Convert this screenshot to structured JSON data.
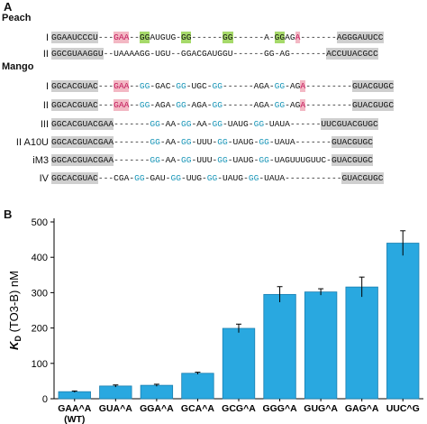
{
  "panel_a": {
    "label": "A",
    "groups": [
      {
        "name": "Peach",
        "rows": [
          {
            "name": "I",
            "segments": [
              {
                "t": "GGAAUCCCU",
                "h": "gray"
              },
              {
                "t": "---",
                "h": ""
              },
              {
                "t": "GAA",
                "h": "red"
              },
              {
                "t": "--",
                "h": ""
              },
              {
                "t": "GG",
                "h": "green"
              },
              {
                "t": "AUGUG-",
                "h": ""
              },
              {
                "t": "GG",
                "h": "green"
              },
              {
                "t": "------",
                "h": ""
              },
              {
                "t": "GG",
                "h": "green"
              },
              {
                "t": "------A-",
                "h": ""
              },
              {
                "t": "GG",
                "h": "green"
              },
              {
                "t": "AG",
                "h": ""
              },
              {
                "t": "A",
                "h": "red"
              },
              {
                "t": "-------",
                "h": ""
              },
              {
                "t": "AGGGAUUCC",
                "h": "gray"
              }
            ]
          },
          {
            "name": "II",
            "segments": [
              {
                "t": "GGCGUAAGGU",
                "h": "gray"
              },
              {
                "t": "--UAAAAGG-UGU--GGACGAUGGU------GG-AG-------",
                "h": ""
              },
              {
                "t": "ACCUUACGCC",
                "h": "gray"
              }
            ]
          }
        ]
      },
      {
        "name": "Mango",
        "rows": [
          {
            "name": "I",
            "segments": [
              {
                "t": "GGCACGUAC",
                "h": "gray"
              },
              {
                "t": "---",
                "h": ""
              },
              {
                "t": "GAA",
                "h": "red"
              },
              {
                "t": "--",
                "h": ""
              },
              {
                "t": "GG",
                "h": "blue"
              },
              {
                "t": "-GAC-",
                "h": ""
              },
              {
                "t": "GG",
                "h": "blue"
              },
              {
                "t": "-UGC-",
                "h": ""
              },
              {
                "t": "GG",
                "h": "blue"
              },
              {
                "t": "------AGA-",
                "h": ""
              },
              {
                "t": "GG",
                "h": "blue"
              },
              {
                "t": "-AG",
                "h": ""
              },
              {
                "t": "A",
                "h": "red"
              },
              {
                "t": "---------",
                "h": ""
              },
              {
                "t": "GUACGUGC",
                "h": "gray"
              }
            ]
          },
          {
            "name": "II",
            "segments": [
              {
                "t": "GGCACGUAC",
                "h": "gray"
              },
              {
                "t": "---",
                "h": ""
              },
              {
                "t": "GAA",
                "h": "red"
              },
              {
                "t": "--",
                "h": ""
              },
              {
                "t": "GG",
                "h": "blue"
              },
              {
                "t": "-AGA-",
                "h": ""
              },
              {
                "t": "GG",
                "h": "blue"
              },
              {
                "t": "-AGA-",
                "h": ""
              },
              {
                "t": "GG",
                "h": "blue"
              },
              {
                "t": "------AGA-",
                "h": ""
              },
              {
                "t": "GG",
                "h": "blue"
              },
              {
                "t": "-AG",
                "h": ""
              },
              {
                "t": "A",
                "h": "red"
              },
              {
                "t": "---------",
                "h": ""
              },
              {
                "t": "GUACGUGC",
                "h": "gray"
              }
            ]
          },
          {
            "name": "III",
            "segments": [
              {
                "t": "GGCACGUACGAA",
                "h": "gray"
              },
              {
                "t": "-------",
                "h": ""
              },
              {
                "t": "GG",
                "h": "blue"
              },
              {
                "t": "-AA-",
                "h": ""
              },
              {
                "t": "GG",
                "h": "blue"
              },
              {
                "t": "-AA-",
                "h": ""
              },
              {
                "t": "GG",
                "h": "blue"
              },
              {
                "t": "-UAUG-",
                "h": ""
              },
              {
                "t": "GG",
                "h": "blue"
              },
              {
                "t": "-UAUA-",
                "h": ""
              },
              {
                "t": "-----",
                "h": ""
              },
              {
                "t": "UUCGUACGUGC",
                "h": "gray"
              }
            ]
          },
          {
            "name": "II A10U",
            "segments": [
              {
                "t": "GGCACGUACGAA",
                "h": "gray"
              },
              {
                "t": "-------",
                "h": ""
              },
              {
                "t": "GG",
                "h": "blue"
              },
              {
                "t": "-AA-",
                "h": ""
              },
              {
                "t": "GG",
                "h": "blue"
              },
              {
                "t": "-UUU-",
                "h": ""
              },
              {
                "t": "GG",
                "h": "blue"
              },
              {
                "t": "-UAUG-",
                "h": ""
              },
              {
                "t": "GG",
                "h": "blue"
              },
              {
                "t": "-UAUA-",
                "h": ""
              },
              {
                "t": "------",
                "h": ""
              },
              {
                "t": "GUACGUGC",
                "h": "gray"
              }
            ]
          },
          {
            "name": "iM3",
            "segments": [
              {
                "t": "GGCACGUACGAA",
                "h": "gray"
              },
              {
                "t": "-------",
                "h": ""
              },
              {
                "t": "GG",
                "h": "blue"
              },
              {
                "t": "-AA-",
                "h": ""
              },
              {
                "t": "GG",
                "h": "blue"
              },
              {
                "t": "-UUU-",
                "h": ""
              },
              {
                "t": "GG",
                "h": "blue"
              },
              {
                "t": "-UAUG-",
                "h": ""
              },
              {
                "t": "GG",
                "h": "blue"
              },
              {
                "t": "-UAGUUUGUUC-",
                "h": ""
              },
              {
                "t": "GUACGUGC",
                "h": "gray"
              }
            ]
          },
          {
            "name": "IV",
            "segments": [
              {
                "t": "GGCACGUAC",
                "h": "gray"
              },
              {
                "t": "---CGA-",
                "h": ""
              },
              {
                "t": "GG",
                "h": "blue"
              },
              {
                "t": "-GAU-",
                "h": ""
              },
              {
                "t": "GG",
                "h": "blue"
              },
              {
                "t": "-UUG-",
                "h": ""
              },
              {
                "t": "GG",
                "h": "blue"
              },
              {
                "t": "-UAUG-",
                "h": ""
              },
              {
                "t": "GG",
                "h": "blue"
              },
              {
                "t": "-UAUA-",
                "h": ""
              },
              {
                "t": "----------",
                "h": ""
              },
              {
                "t": "GUACGUGC",
                "h": "gray"
              }
            ]
          }
        ]
      }
    ]
  },
  "panel_b": {
    "label": "B"
  },
  "colors": {
    "bar": "#29a8e0",
    "bar_stroke": "#1a7fb0",
    "highlight_gray": "#cfcfcf",
    "highlight_red": "#f3b8c4",
    "highlight_green": "#a6d96a",
    "blue_text": "#1a96b8"
  },
  "chart_data": {
    "type": "bar",
    "categories": [
      "GAA^A\n(WT)",
      "GUA^A",
      "GGA^A",
      "GCA^A",
      "GCG^A",
      "GGG^A",
      "GUG^A",
      "GAG^A",
      "UUC^G"
    ],
    "values": [
      20,
      36,
      38,
      72,
      199,
      295,
      302,
      316,
      440
    ],
    "errors": [
      2,
      3,
      3,
      3,
      12,
      22,
      9,
      28,
      35
    ],
    "ylabel_main": "K",
    "ylabel_sub": "D",
    "ylabel_rest": " (TO3-B) nM",
    "ylim": [
      0,
      500
    ],
    "yticks": [
      0,
      100,
      200,
      300,
      400,
      500
    ],
    "grid": false
  }
}
